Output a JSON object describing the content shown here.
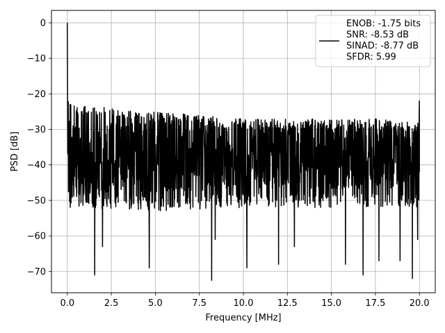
{
  "chart_data": {
    "type": "line",
    "xlabel": "Frequency [MHz]",
    "ylabel": "PSD [dB]",
    "xlim": [
      -0.9,
      20.9
    ],
    "ylim": [
      -76,
      3.5
    ],
    "x_ticks": [
      0.0,
      2.5,
      5.0,
      7.5,
      10.0,
      12.5,
      15.0,
      17.5,
      20.0
    ],
    "x_tick_labels": [
      "0.0",
      "2.5",
      "5.0",
      "7.5",
      "10.0",
      "12.5",
      "15.0",
      "17.5",
      "20.0"
    ],
    "y_ticks": [
      0,
      -10,
      -20,
      -30,
      -40,
      -50,
      -60,
      -70
    ],
    "y_tick_labels": [
      "0",
      "−10",
      "−20",
      "−30",
      "−40",
      "−50",
      "−60",
      "−70"
    ],
    "grid": true,
    "legend_position": "top-right",
    "series": [
      {
        "name": "ENOB: -1.75 bits\nSNR: -8.53 dB\nSINAD: -8.77 dB\nSFDR: 5.99",
        "color": "#000000",
        "x_range": [
          0,
          20
        ],
        "peak": {
          "x": 0.0,
          "y": 0
        },
        "end_spur": {
          "x": 20.0,
          "y": -22
        },
        "upper_envelope": [
          [
            0.1,
            -20
          ],
          [
            0.5,
            -23
          ],
          [
            2.5,
            -24
          ],
          [
            5.0,
            -25
          ],
          [
            7.5,
            -26
          ],
          [
            10.0,
            -27
          ],
          [
            12.5,
            -27
          ],
          [
            15.0,
            -27
          ],
          [
            17.5,
            -27
          ],
          [
            20.0,
            -28
          ]
        ],
        "median_level": -38,
        "lower_envelope": [
          [
            0.5,
            -52
          ],
          [
            5.0,
            -53
          ],
          [
            10.0,
            -52
          ],
          [
            15.0,
            -52
          ],
          [
            20.0,
            -52
          ]
        ],
        "deep_notches": [
          [
            1.55,
            -71
          ],
          [
            2.0,
            -63
          ],
          [
            4.65,
            -69
          ],
          [
            8.2,
            -72.5
          ],
          [
            8.4,
            -61
          ],
          [
            10.2,
            -69
          ],
          [
            12.0,
            -68
          ],
          [
            12.9,
            -63
          ],
          [
            15.8,
            -68
          ],
          [
            16.8,
            -71
          ],
          [
            17.7,
            -67
          ],
          [
            18.9,
            -67
          ],
          [
            19.6,
            -72
          ],
          [
            19.9,
            -61
          ]
        ]
      }
    ]
  }
}
